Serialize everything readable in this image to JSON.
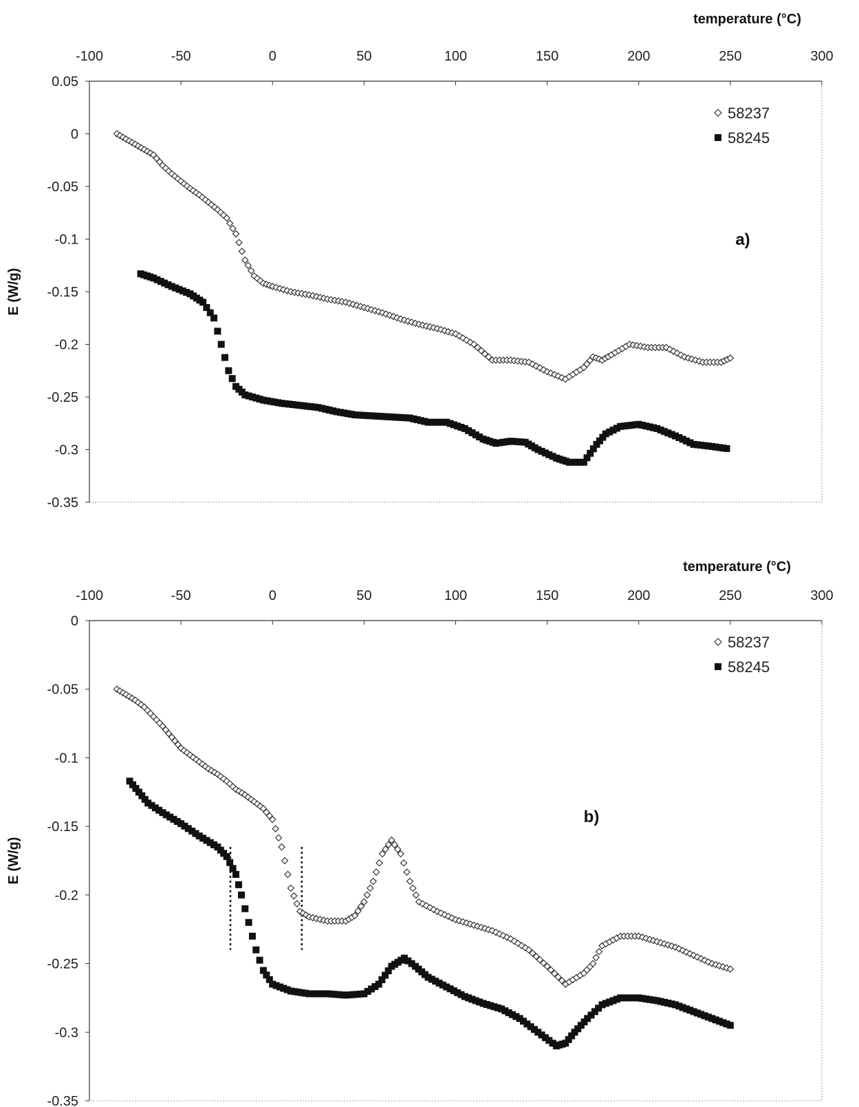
{
  "chart_data": [
    {
      "type": "scatter",
      "panel_label": "a)",
      "xlabel": "temperature (°C)",
      "ylabel": "E (W/g)",
      "xlim": [
        -100,
        300
      ],
      "ylim": [
        -0.35,
        0.05
      ],
      "xticks": [
        "-100",
        "-50",
        "0",
        "50",
        "100",
        "150",
        "200",
        "250",
        "300"
      ],
      "yticks": [
        "0.05",
        "0",
        "-0.05",
        "-0.1",
        "-0.15",
        "-0.2",
        "-0.25",
        "-0.3",
        "-0.35"
      ],
      "x_axis_position": "top",
      "grid": false,
      "legend_position": "top-right",
      "series": [
        {
          "name": "58237",
          "marker": "open-diamond",
          "points": [
            [
              -85,
              0.0
            ],
            [
              -80,
              -0.005
            ],
            [
              -75,
              -0.01
            ],
            [
              -70,
              -0.015
            ],
            [
              -65,
              -0.02
            ],
            [
              -60,
              -0.03
            ],
            [
              -55,
              -0.038
            ],
            [
              -50,
              -0.045
            ],
            [
              -45,
              -0.052
            ],
            [
              -40,
              -0.058
            ],
            [
              -35,
              -0.065
            ],
            [
              -30,
              -0.072
            ],
            [
              -25,
              -0.08
            ],
            [
              -20,
              -0.095
            ],
            [
              -15,
              -0.12
            ],
            [
              -10,
              -0.135
            ],
            [
              -5,
              -0.142
            ],
            [
              0,
              -0.145
            ],
            [
              10,
              -0.15
            ],
            [
              20,
              -0.153
            ],
            [
              30,
              -0.157
            ],
            [
              40,
              -0.16
            ],
            [
              50,
              -0.165
            ],
            [
              60,
              -0.17
            ],
            [
              70,
              -0.176
            ],
            [
              80,
              -0.181
            ],
            [
              90,
              -0.185
            ],
            [
              100,
              -0.19
            ],
            [
              110,
              -0.2
            ],
            [
              120,
              -0.215
            ],
            [
              130,
              -0.215
            ],
            [
              140,
              -0.217
            ],
            [
              150,
              -0.226
            ],
            [
              160,
              -0.233
            ],
            [
              170,
              -0.222
            ],
            [
              175,
              -0.212
            ],
            [
              180,
              -0.215
            ],
            [
              185,
              -0.21
            ],
            [
              195,
              -0.2
            ],
            [
              205,
              -0.203
            ],
            [
              215,
              -0.203
            ],
            [
              225,
              -0.212
            ],
            [
              235,
              -0.217
            ],
            [
              245,
              -0.217
            ],
            [
              250,
              -0.213
            ]
          ]
        },
        {
          "name": "58245",
          "marker": "filled-square",
          "points": [
            [
              -72,
              -0.133
            ],
            [
              -65,
              -0.137
            ],
            [
              -55,
              -0.145
            ],
            [
              -45,
              -0.152
            ],
            [
              -38,
              -0.16
            ],
            [
              -32,
              -0.175
            ],
            [
              -28,
              -0.2
            ],
            [
              -24,
              -0.225
            ],
            [
              -20,
              -0.24
            ],
            [
              -15,
              -0.248
            ],
            [
              -5,
              -0.253
            ],
            [
              5,
              -0.256
            ],
            [
              15,
              -0.258
            ],
            [
              25,
              -0.26
            ],
            [
              35,
              -0.264
            ],
            [
              45,
              -0.267
            ],
            [
              55,
              -0.268
            ],
            [
              65,
              -0.269
            ],
            [
              75,
              -0.27
            ],
            [
              85,
              -0.274
            ],
            [
              95,
              -0.274
            ],
            [
              105,
              -0.28
            ],
            [
              115,
              -0.29
            ],
            [
              122,
              -0.294
            ],
            [
              130,
              -0.292
            ],
            [
              138,
              -0.293
            ],
            [
              145,
              -0.3
            ],
            [
              155,
              -0.308
            ],
            [
              162,
              -0.312
            ],
            [
              170,
              -0.312
            ],
            [
              177,
              -0.295
            ],
            [
              182,
              -0.285
            ],
            [
              190,
              -0.278
            ],
            [
              200,
              -0.276
            ],
            [
              210,
              -0.28
            ],
            [
              220,
              -0.287
            ],
            [
              230,
              -0.295
            ],
            [
              240,
              -0.297
            ],
            [
              248,
              -0.299
            ]
          ]
        }
      ]
    },
    {
      "type": "scatter",
      "panel_label": "b)",
      "xlabel": "temperature (°C)",
      "ylabel": "E (W/g)",
      "xlim": [
        -100,
        300
      ],
      "ylim": [
        -0.35,
        0
      ],
      "xticks": [
        "-100",
        "-50",
        "0",
        "50",
        "100",
        "150",
        "200",
        "250",
        "300"
      ],
      "yticks": [
        "0",
        "-0.05",
        "-0.1",
        "-0.15",
        "-0.2",
        "-0.25",
        "-0.3",
        "-0.35"
      ],
      "x_axis_position": "top",
      "grid": false,
      "legend_position": "top-right",
      "vlines": [
        {
          "x": -23,
          "y_from": -0.165,
          "y_to": -0.24
        },
        {
          "x": 16,
          "y_from": -0.165,
          "y_to": -0.24
        }
      ],
      "series": [
        {
          "name": "58237",
          "marker": "open-diamond",
          "points": [
            [
              -85,
              -0.05
            ],
            [
              -80,
              -0.054
            ],
            [
              -75,
              -0.058
            ],
            [
              -70,
              -0.063
            ],
            [
              -65,
              -0.07
            ],
            [
              -60,
              -0.077
            ],
            [
              -55,
              -0.085
            ],
            [
              -50,
              -0.093
            ],
            [
              -45,
              -0.098
            ],
            [
              -40,
              -0.103
            ],
            [
              -35,
              -0.108
            ],
            [
              -30,
              -0.112
            ],
            [
              -25,
              -0.117
            ],
            [
              -20,
              -0.123
            ],
            [
              -15,
              -0.127
            ],
            [
              -10,
              -0.132
            ],
            [
              -5,
              -0.137
            ],
            [
              0,
              -0.145
            ],
            [
              5,
              -0.165
            ],
            [
              10,
              -0.195
            ],
            [
              15,
              -0.212
            ],
            [
              20,
              -0.216
            ],
            [
              30,
              -0.219
            ],
            [
              40,
              -0.219
            ],
            [
              45,
              -0.215
            ],
            [
              50,
              -0.205
            ],
            [
              55,
              -0.19
            ],
            [
              60,
              -0.17
            ],
            [
              65,
              -0.16
            ],
            [
              70,
              -0.17
            ],
            [
              75,
              -0.19
            ],
            [
              80,
              -0.205
            ],
            [
              90,
              -0.212
            ],
            [
              100,
              -0.218
            ],
            [
              110,
              -0.222
            ],
            [
              120,
              -0.226
            ],
            [
              130,
              -0.232
            ],
            [
              140,
              -0.24
            ],
            [
              150,
              -0.252
            ],
            [
              160,
              -0.265
            ],
            [
              170,
              -0.257
            ],
            [
              175,
              -0.25
            ],
            [
              180,
              -0.237
            ],
            [
              190,
              -0.23
            ],
            [
              200,
              -0.23
            ],
            [
              210,
              -0.234
            ],
            [
              220,
              -0.238
            ],
            [
              230,
              -0.244
            ],
            [
              240,
              -0.25
            ],
            [
              250,
              -0.254
            ]
          ]
        },
        {
          "name": "58245",
          "marker": "filled-square",
          "points": [
            [
              -78,
              -0.117
            ],
            [
              -73,
              -0.125
            ],
            [
              -68,
              -0.133
            ],
            [
              -60,
              -0.14
            ],
            [
              -50,
              -0.148
            ],
            [
              -40,
              -0.157
            ],
            [
              -30,
              -0.165
            ],
            [
              -25,
              -0.172
            ],
            [
              -20,
              -0.185
            ],
            [
              -17,
              -0.2
            ],
            [
              -13,
              -0.22
            ],
            [
              -9,
              -0.24
            ],
            [
              -5,
              -0.255
            ],
            [
              0,
              -0.265
            ],
            [
              10,
              -0.27
            ],
            [
              20,
              -0.272
            ],
            [
              30,
              -0.272
            ],
            [
              40,
              -0.273
            ],
            [
              50,
              -0.272
            ],
            [
              58,
              -0.265
            ],
            [
              65,
              -0.252
            ],
            [
              72,
              -0.246
            ],
            [
              78,
              -0.252
            ],
            [
              85,
              -0.26
            ],
            [
              95,
              -0.267
            ],
            [
              105,
              -0.274
            ],
            [
              115,
              -0.279
            ],
            [
              125,
              -0.283
            ],
            [
              135,
              -0.29
            ],
            [
              145,
              -0.3
            ],
            [
              155,
              -0.31
            ],
            [
              160,
              -0.308
            ],
            [
              165,
              -0.3
            ],
            [
              172,
              -0.29
            ],
            [
              180,
              -0.28
            ],
            [
              190,
              -0.275
            ],
            [
              200,
              -0.275
            ],
            [
              210,
              -0.277
            ],
            [
              220,
              -0.28
            ],
            [
              230,
              -0.285
            ],
            [
              240,
              -0.29
            ],
            [
              250,
              -0.295
            ]
          ]
        }
      ]
    }
  ]
}
